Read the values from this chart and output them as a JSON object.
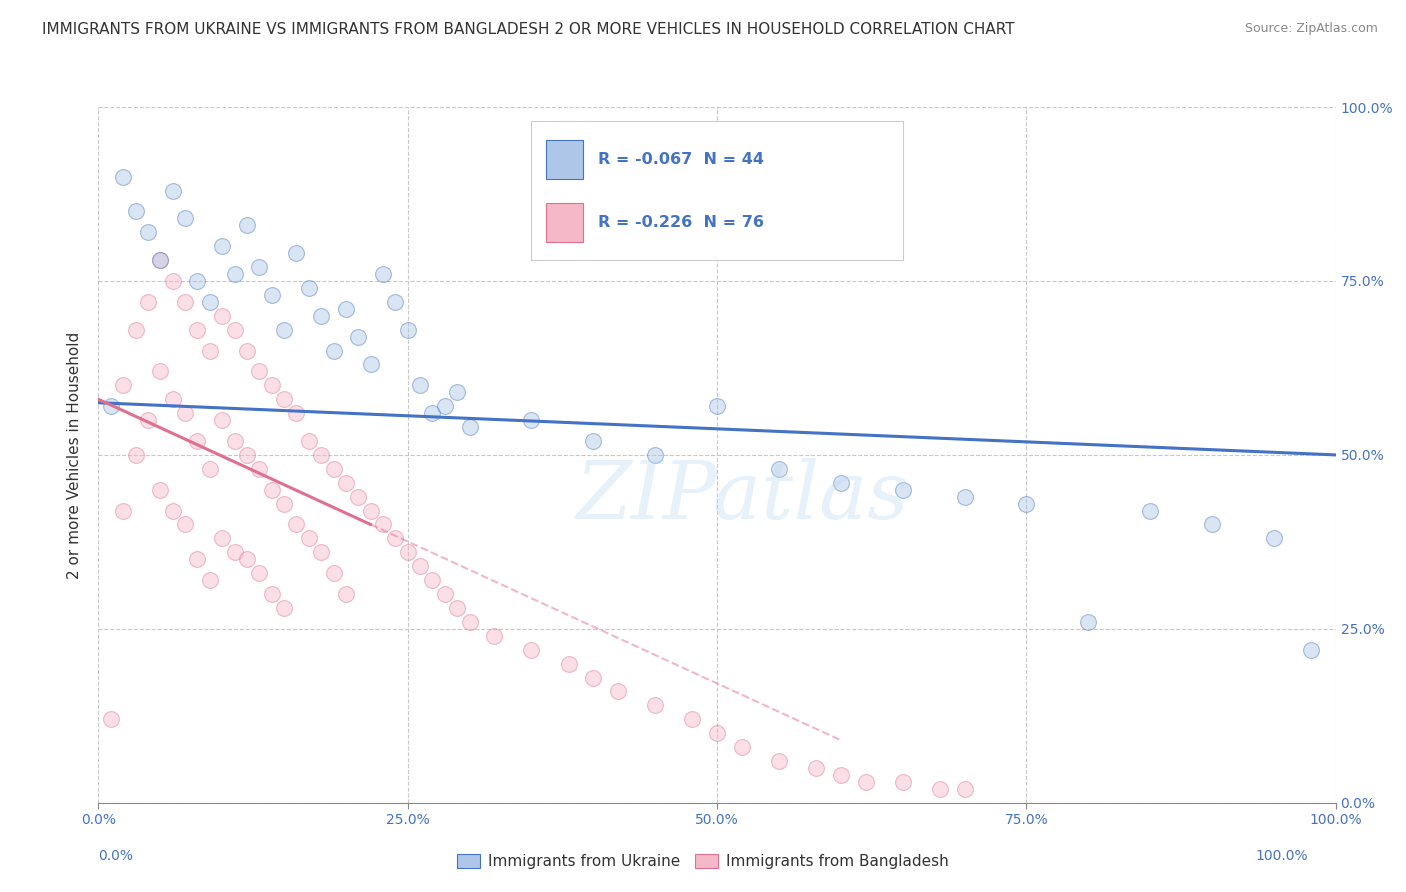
{
  "title": "IMMIGRANTS FROM UKRAINE VS IMMIGRANTS FROM BANGLADESH 2 OR MORE VEHICLES IN HOUSEHOLD CORRELATION CHART",
  "source": "Source: ZipAtlas.com",
  "xlabel_ukraine": "Immigrants from Ukraine",
  "xlabel_bangladesh": "Immigrants from Bangladesh",
  "ylabel": "2 or more Vehicles in Household",
  "watermark": "ZIPatlas",
  "ukraine_R": -0.067,
  "ukraine_N": 44,
  "bangladesh_R": -0.226,
  "bangladesh_N": 76,
  "ukraine_color": "#aec6e8",
  "bangladesh_color": "#f5b8c8",
  "ukraine_line_color": "#4472c4",
  "bangladesh_line_color": "#e07090",
  "ukraine_scatter_x": [
    1,
    2,
    3,
    4,
    5,
    6,
    7,
    8,
    9,
    10,
    11,
    12,
    13,
    14,
    15,
    16,
    17,
    18,
    19,
    20,
    21,
    22,
    23,
    24,
    25,
    26,
    27,
    28,
    29,
    30,
    35,
    40,
    45,
    50,
    55,
    60,
    65,
    70,
    75,
    80,
    85,
    90,
    95,
    98
  ],
  "ukraine_scatter_y": [
    57,
    90,
    85,
    82,
    78,
    88,
    84,
    75,
    72,
    80,
    76,
    83,
    77,
    73,
    68,
    79,
    74,
    70,
    65,
    71,
    67,
    63,
    76,
    72,
    68,
    60,
    56,
    57,
    59,
    54,
    55,
    52,
    50,
    57,
    48,
    46,
    45,
    44,
    43,
    26,
    42,
    40,
    38,
    22
  ],
  "bangladesh_scatter_x": [
    1,
    2,
    2,
    3,
    3,
    4,
    4,
    5,
    5,
    5,
    6,
    6,
    6,
    7,
    7,
    7,
    8,
    8,
    8,
    9,
    9,
    9,
    10,
    10,
    10,
    11,
    11,
    11,
    12,
    12,
    12,
    13,
    13,
    13,
    14,
    14,
    14,
    15,
    15,
    15,
    16,
    16,
    17,
    17,
    18,
    18,
    19,
    19,
    20,
    20,
    21,
    22,
    23,
    24,
    25,
    26,
    27,
    28,
    29,
    30,
    32,
    35,
    38,
    40,
    42,
    45,
    48,
    50,
    52,
    55,
    58,
    60,
    62,
    65,
    68,
    70
  ],
  "bangladesh_scatter_y": [
    12,
    60,
    42,
    68,
    50,
    72,
    55,
    78,
    62,
    45,
    75,
    58,
    42,
    72,
    56,
    40,
    68,
    52,
    35,
    65,
    48,
    32,
    70,
    55,
    38,
    68,
    52,
    36,
    65,
    50,
    35,
    62,
    48,
    33,
    60,
    45,
    30,
    58,
    43,
    28,
    56,
    40,
    52,
    38,
    50,
    36,
    48,
    33,
    46,
    30,
    44,
    42,
    40,
    38,
    36,
    34,
    32,
    30,
    28,
    26,
    24,
    22,
    20,
    18,
    16,
    14,
    12,
    10,
    8,
    6,
    5,
    4,
    3,
    3,
    2,
    2
  ],
  "xlim": [
    0,
    100
  ],
  "ylim": [
    0,
    100
  ],
  "xticks": [
    0,
    25,
    50,
    75,
    100
  ],
  "yticks": [
    0,
    25,
    50,
    75,
    100
  ],
  "xticklabels": [
    "0.0%",
    "25.0%",
    "50.0%",
    "75.0%",
    "100.0%"
  ],
  "yticklabels_right": [
    "0.0%",
    "25.0%",
    "50.0%",
    "75.0%",
    "100.0%"
  ],
  "background_color": "#ffffff",
  "grid_color": "#c8c8c8",
  "title_fontsize": 11,
  "axis_label_fontsize": 11,
  "tick_fontsize": 10,
  "marker_size": 130,
  "marker_alpha": 0.45,
  "ukraine_trend_x0": 0,
  "ukraine_trend_y0": 57.5,
  "ukraine_trend_x1": 100,
  "ukraine_trend_y1": 50.0,
  "bangladesh_trend_solid_x0": 0,
  "bangladesh_trend_solid_y0": 58.0,
  "bangladesh_trend_solid_x1": 22,
  "bangladesh_trend_solid_y1": 40.0,
  "bangladesh_trend_dash_x0": 22,
  "bangladesh_trend_dash_y0": 40.0,
  "bangladesh_trend_dash_x1": 60,
  "bangladesh_trend_dash_y1": 9.0
}
